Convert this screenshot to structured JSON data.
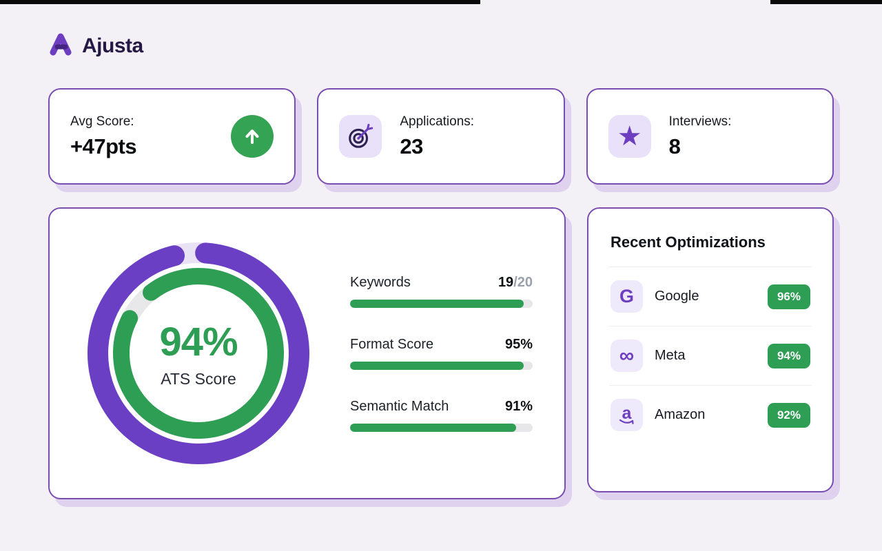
{
  "brand": {
    "name": "Ajusta",
    "logo_icon": "ajusta-a-mark"
  },
  "stats": [
    {
      "label": "Avg Score:",
      "value": "+47pts",
      "icon": "arrow-up-circle"
    },
    {
      "label": "Applications:",
      "value": "23",
      "icon": "target"
    },
    {
      "label": "Interviews:",
      "value": "8",
      "icon": "star",
      "glyph": "★"
    }
  ],
  "ats_card": {
    "score": "94%",
    "score_label": "ATS Score",
    "donut": {
      "outer_percent": 95,
      "inner_percent": 93,
      "outer_color": "#6b3fc4",
      "inner_color": "#2f9e55"
    },
    "metrics": [
      {
        "label": "Keywords",
        "value": "19",
        "value_suffix": "/20",
        "percent": 95
      },
      {
        "label": "Format Score",
        "value": "95%",
        "value_suffix": "",
        "percent": 95
      },
      {
        "label": "Semantic Match",
        "value": "91%",
        "value_suffix": "",
        "percent": 91
      }
    ]
  },
  "optimizations": {
    "title": "Recent Optimizations",
    "items": [
      {
        "company": "Google",
        "score": "96%",
        "icon": "google-g",
        "glyph": "G"
      },
      {
        "company": "Meta",
        "score": "94%",
        "icon": "meta-infinity",
        "glyph": "∞"
      },
      {
        "company": "Amazon",
        "score": "92%",
        "icon": "amazon-smile",
        "glyph": "a"
      }
    ]
  },
  "colors": {
    "accent_purple": "#6d3fc0",
    "accent_green": "#2f9e55",
    "card_border": "#7a4db3",
    "background": "#f3f0f6"
  }
}
